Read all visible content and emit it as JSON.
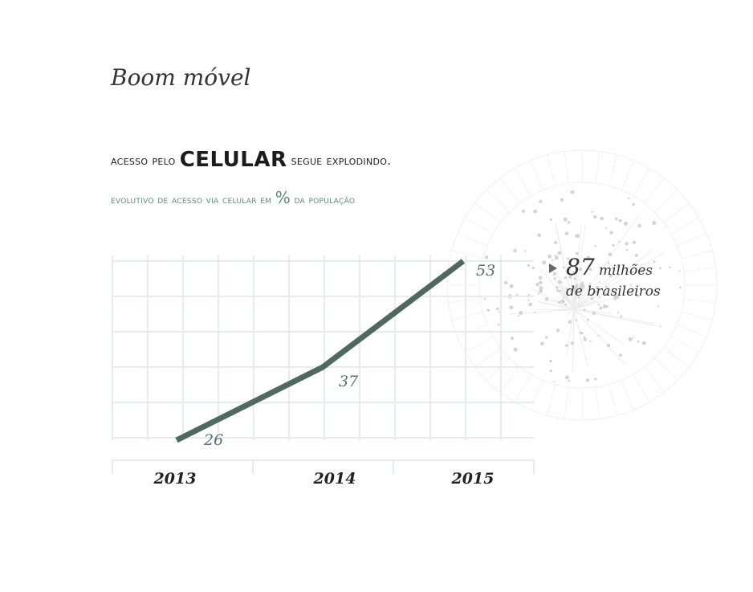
{
  "title": "Boom móvel",
  "headline": {
    "part1": "acesso pelo ",
    "emphasis": "CELULAR",
    "part2": " segue explodindo."
  },
  "subtitle": {
    "part1": "evolutivo de acesso via celular em ",
    "pct": "%",
    "part2": " da população"
  },
  "annotation": {
    "number": "87",
    "line1_rest": " milhões",
    "line2": "de brasileiros"
  },
  "colors": {
    "line": "#4f6860",
    "label": "#55706a",
    "grid": "#e6ecea",
    "subtitle": "#5a8a7a"
  },
  "chart_data": {
    "type": "line",
    "x": [
      "2013",
      "2014",
      "2015"
    ],
    "series": [
      {
        "values": [
          26,
          37,
          53
        ]
      }
    ],
    "data_labels": [
      "26",
      "37",
      "53"
    ],
    "ylim": [
      24,
      55
    ],
    "grid": true
  }
}
